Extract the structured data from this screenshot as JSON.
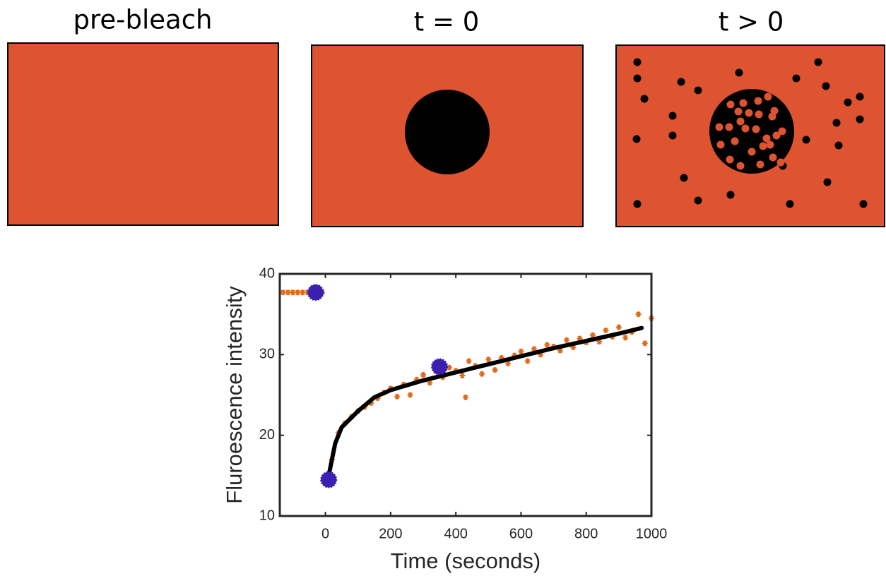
{
  "panels": [
    {
      "title": "pre-bleach"
    },
    {
      "title": "t = 0"
    },
    {
      "title": "t > 0"
    }
  ],
  "chart_data": {
    "type": "scatter",
    "xlabel": "Time (seconds)",
    "ylabel": "Fluroescence intensity",
    "xlim": [
      -140,
      1000
    ],
    "ylim": [
      10,
      40
    ],
    "xticks": [
      0,
      200,
      400,
      600,
      800,
      1000
    ],
    "yticks": [
      10,
      20,
      30,
      40
    ],
    "series": [
      {
        "color": "#e06a1b",
        "style": "points",
        "x": [
          -130,
          -115,
          -100,
          -85,
          -70,
          -55,
          -40,
          -25,
          -10,
          20,
          40,
          60,
          80,
          100,
          120,
          140,
          160,
          180,
          200,
          220,
          240,
          260,
          280,
          300,
          320,
          340,
          360,
          380,
          400,
          420,
          430,
          440,
          460,
          480,
          500,
          520,
          540,
          560,
          580,
          600,
          620,
          640,
          660,
          680,
          700,
          720,
          740,
          760,
          780,
          800,
          820,
          840,
          860,
          880,
          900,
          920,
          940,
          960,
          980,
          1000
        ],
        "values": [
          37.7,
          37.7,
          37.7,
          37.7,
          37.7,
          37.7,
          37.7,
          37.7,
          37.7,
          17.0,
          20.3,
          21.5,
          22.3,
          23.0,
          23.5,
          24.0,
          24.6,
          25.3,
          25.8,
          24.8,
          26.3,
          25.0,
          26.9,
          27.5,
          26.5,
          27.9,
          27.2,
          28.4,
          28.0,
          27.4,
          24.7,
          29.2,
          28.6,
          27.6,
          29.4,
          28.1,
          29.6,
          28.9,
          29.9,
          30.4,
          29.2,
          30.7,
          30.0,
          31.2,
          31.0,
          30.5,
          31.8,
          30.9,
          32.0,
          31.5,
          32.4,
          31.6,
          33.0,
          32.2,
          33.4,
          32.1,
          32.8,
          35.0,
          31.4,
          34.5
        ]
      },
      {
        "color": "#000000",
        "style": "line",
        "x": [
          10,
          30,
          50,
          100,
          150,
          200,
          300,
          400,
          500,
          600,
          700,
          800,
          900,
          970
        ],
        "values": [
          15.0,
          19.0,
          21.0,
          23.0,
          24.7,
          25.6,
          26.8,
          27.8,
          28.8,
          29.8,
          30.8,
          31.7,
          32.6,
          33.3
        ]
      },
      {
        "color": "#3a1fb0",
        "style": "points-large",
        "x": [
          -30,
          10,
          350
        ],
        "values": [
          37.7,
          14.5,
          28.5
        ]
      }
    ]
  }
}
